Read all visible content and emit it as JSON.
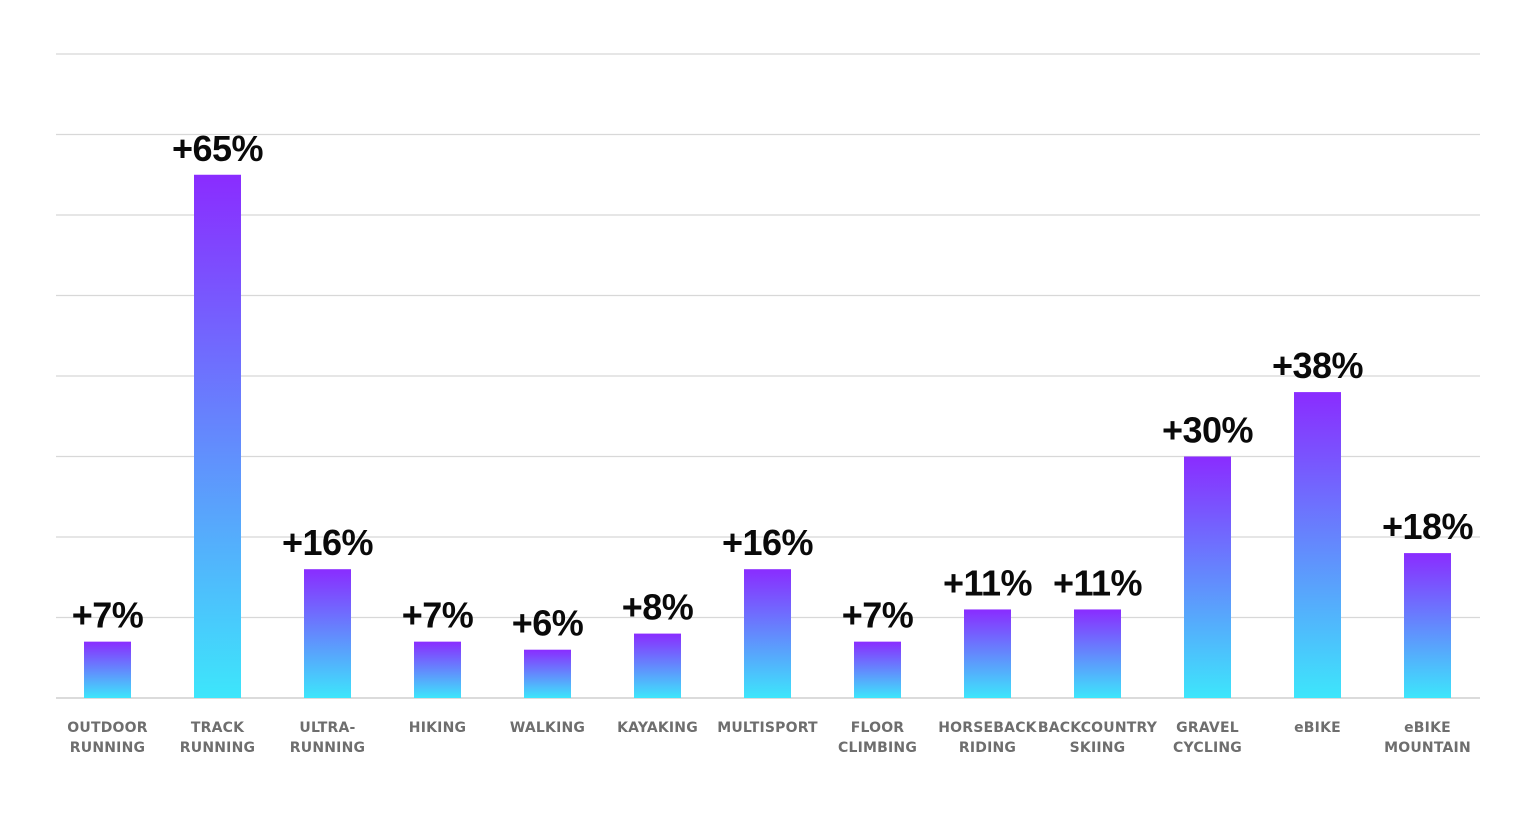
{
  "chart_data": {
    "type": "bar",
    "title": "",
    "xlabel": "",
    "ylabel": "",
    "ylim": [
      0,
      80
    ],
    "grid": true,
    "gridline_count": 8,
    "gradient": {
      "top": "#8a2cff",
      "bottom": "#3de6fb"
    },
    "categories": [
      [
        "OUTDOOR",
        "RUNNING"
      ],
      [
        "TRACK",
        "RUNNING"
      ],
      [
        "ULTRA-",
        "RUNNING"
      ],
      [
        "HIKING"
      ],
      [
        "WALKING"
      ],
      [
        "KAYAKING"
      ],
      [
        "MULTISPORT"
      ],
      [
        "FLOOR",
        "CLIMBING"
      ],
      [
        "HORSEBACK",
        "RIDING"
      ],
      [
        "BACKCOUNTRY",
        "SKIING"
      ],
      [
        "GRAVEL",
        "CYCLING"
      ],
      [
        "eBIKE"
      ],
      [
        "eBIKE",
        "MOUNTAIN"
      ]
    ],
    "values": [
      7,
      65,
      16,
      7,
      6,
      8,
      16,
      7,
      11,
      11,
      30,
      38,
      18
    ],
    "value_labels": [
      "+7%",
      "+65%",
      "+16%",
      "+7%",
      "+6%",
      "+8%",
      "+16%",
      "+7%",
      "+11%",
      "+11%",
      "+30%",
      "+38%",
      "+18%"
    ]
  }
}
